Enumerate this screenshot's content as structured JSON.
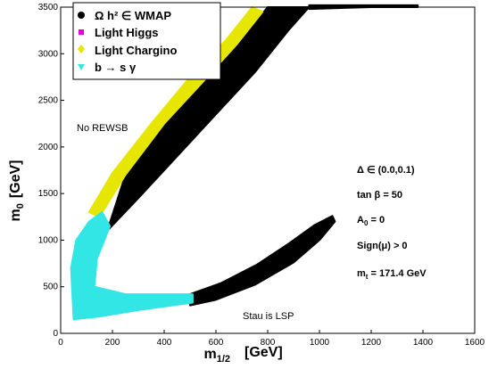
{
  "chart_data": {
    "type": "scatter",
    "xlabel_main": "m",
    "xlabel_sub": "1/2",
    "xlabel_unit": "[GeV]",
    "ylabel_main": "m",
    "ylabel_sub": "0",
    "ylabel_unit": "[GeV]",
    "xlim": [
      0,
      1600
    ],
    "ylim": [
      0,
      3500
    ],
    "x_ticks": [
      0,
      200,
      400,
      600,
      800,
      1000,
      1200,
      1400,
      1600
    ],
    "y_ticks": [
      0,
      500,
      1000,
      1500,
      2000,
      2500,
      3000,
      3500
    ],
    "legend": [
      {
        "label": "Ω h² ∈ WMAP",
        "color": "#000000",
        "marker": "circle"
      },
      {
        "label": "Light Higgs",
        "color": "#e000e0",
        "marker": "square"
      },
      {
        "label": "Light Chargino",
        "color": "#e6e600",
        "marker": "diamond"
      },
      {
        "label": "b → s γ",
        "color": "#33e6e6",
        "marker": "triangle"
      }
    ],
    "annotations": {
      "no_rewsb": "No REWSB",
      "stau_lsp": "Stau is LSP",
      "delta": "Δ  ∈ (0.0,0.1)",
      "tanb": "tan β = 50",
      "a0": "A",
      "a0_sub": "0",
      "a0_val": " = 0",
      "sign_mu": "Sign(μ) > 0",
      "mt": "m",
      "mt_sub": "t",
      "mt_val": " = 171.4 GeV"
    },
    "series": [
      {
        "name": "Ω h² ∈ WMAP",
        "color": "#000000",
        "regions": [
          {
            "lower": [
              [
                180,
                1100
              ],
              [
                300,
                1450
              ],
              [
                450,
                1900
              ],
              [
                600,
                2350
              ],
              [
                750,
                2800
              ],
              [
                880,
                3250
              ],
              [
                960,
                3500
              ]
            ],
            "upper": [
              [
                250,
                1700
              ],
              [
                400,
                2250
              ],
              [
                550,
                2700
              ],
              [
                680,
                3100
              ],
              [
                800,
                3500
              ]
            ]
          },
          {
            "lower": [
              [
                500,
                300
              ],
              [
                600,
                360
              ],
              [
                750,
                520
              ],
              [
                900,
                760
              ],
              [
                1000,
                1000
              ],
              [
                1060,
                1200
              ]
            ],
            "upper": [
              [
                500,
                420
              ],
              [
                620,
                540
              ],
              [
                760,
                740
              ],
              [
                880,
                960
              ],
              [
                980,
                1160
              ],
              [
                1050,
                1260
              ]
            ]
          },
          {
            "lower": [
              [
                960,
                3480
              ],
              [
                1200,
                3500
              ],
              [
                1380,
                3500
              ]
            ],
            "upper": [
              [
                960,
                3520
              ],
              [
                1200,
                3520
              ],
              [
                1380,
                3520
              ]
            ]
          }
        ]
      },
      {
        "name": "Light Higgs",
        "color": "#e000e0",
        "regions": []
      },
      {
        "name": "Light Chargino",
        "color": "#e6e600",
        "regions": [
          {
            "lower": [
              [
                150,
                1250
              ],
              [
                250,
                1700
              ],
              [
                400,
                2250
              ],
              [
                550,
                2700
              ],
              [
                680,
                3100
              ],
              [
                780,
                3450
              ]
            ],
            "upper": [
              [
                110,
                1300
              ],
              [
                200,
                1720
              ],
              [
                350,
                2250
              ],
              [
                500,
                2750
              ],
              [
                640,
                3150
              ],
              [
                740,
                3500
              ]
            ]
          }
        ]
      },
      {
        "name": "b → s γ",
        "color": "#33e6e6",
        "regions": [
          {
            "lower": [
              [
                50,
                150
              ],
              [
                150,
                180
              ],
              [
                300,
                250
              ],
              [
                510,
                330
              ]
            ],
            "upper": [
              [
                40,
                700
              ],
              [
                60,
                1000
              ],
              [
                110,
                1200
              ],
              [
                160,
                1300
              ],
              [
                190,
                1150
              ],
              [
                140,
                800
              ],
              [
                130,
                500
              ],
              [
                250,
                420
              ],
              [
                510,
                420
              ]
            ]
          }
        ]
      }
    ]
  }
}
